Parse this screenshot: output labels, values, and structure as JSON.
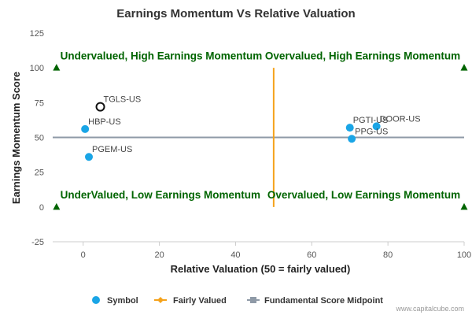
{
  "chart_data": {
    "type": "scatter",
    "title": "Earnings Momentum Vs Relative Valuation",
    "xlabel": "Relative Valuation (50 = fairly valued)",
    "ylabel": "Earnings Momentum Score",
    "xlim": [
      -8,
      100
    ],
    "ylim": [
      -25,
      125
    ],
    "xticks": [
      "0",
      "20",
      "40",
      "60",
      "80",
      "100"
    ],
    "yticks": [
      "-25",
      "0",
      "25",
      "50",
      "75",
      "100",
      "125"
    ],
    "grid": false,
    "legend_position": "bottom",
    "series": [
      {
        "name": "Symbol",
        "color": "#1aa5e6",
        "points": [
          {
            "label": "TGLS-US",
            "x": 4.5,
            "y": 72,
            "highlight": true
          },
          {
            "label": "HBP-US",
            "x": 0.5,
            "y": 56
          },
          {
            "label": "PGEM-US",
            "x": 1.5,
            "y": 36
          },
          {
            "label": "PGTI-US",
            "x": 70,
            "y": 57
          },
          {
            "label": "DOOR-US",
            "x": 77,
            "y": 58
          },
          {
            "label": "PPG-US",
            "x": 70.5,
            "y": 49
          }
        ]
      },
      {
        "name": "Fairly Valued",
        "color": "#f5a21b",
        "x": [
          50,
          50
        ],
        "y": [
          0,
          100
        ]
      },
      {
        "name": "Fundamental Score Midpoint",
        "color": "#8f9aa7",
        "x": [
          -8,
          100
        ],
        "y": [
          50,
          50
        ]
      }
    ],
    "quadrant_labels": [
      {
        "text": "Undervalued, High Earnings Momentum",
        "x": -6,
        "y": 105,
        "anchor": "start"
      },
      {
        "text": "Overvalued, High Earnings Momentum",
        "x": 99,
        "y": 105,
        "anchor": "end"
      },
      {
        "text": "UnderValued, Low Earnings Momentum",
        "x": -6,
        "y": 5,
        "anchor": "start"
      },
      {
        "text": "Overvalued, Low Earnings Momentum",
        "x": 99,
        "y": 5,
        "anchor": "end"
      }
    ],
    "quadrant_label_color": "#006400",
    "corner_markers": {
      "color": "#006400",
      "points": [
        {
          "x": -7,
          "y": 100
        },
        {
          "x": 100,
          "y": 100
        },
        {
          "x": -7,
          "y": 0
        },
        {
          "x": 100,
          "y": 0
        }
      ]
    },
    "credit": "www.capitalcube.com"
  }
}
